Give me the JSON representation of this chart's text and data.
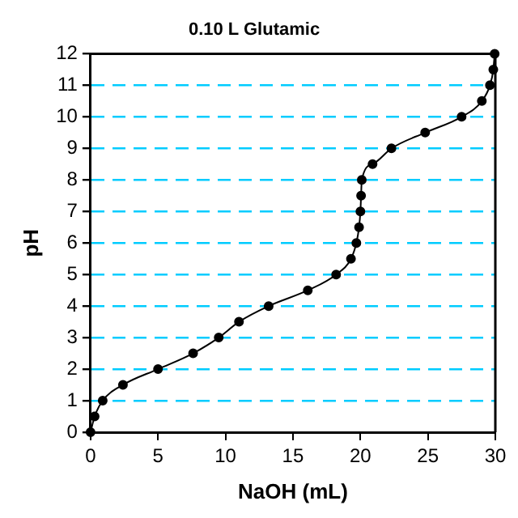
{
  "chart_data": {
    "type": "line",
    "title": "0.10 L Glutamic",
    "xlabel": "NaOH (mL)",
    "ylabel": "pH",
    "xlim": [
      0,
      30
    ],
    "xticks": [
      0,
      5,
      10,
      15,
      20,
      25,
      30
    ],
    "ylim": [
      0,
      12
    ],
    "yticks": [
      0,
      1,
      2,
      3,
      4,
      5,
      6,
      7,
      8,
      9,
      10,
      11,
      12
    ],
    "grid": "y",
    "legend": false,
    "marker": "circle",
    "line_style": "solid",
    "series": [
      {
        "color": "#000000",
        "x": [
          0,
          0.3,
          0.9,
          2.4,
          5,
          7.6,
          9.5,
          11,
          13.2,
          16.1,
          18.2,
          19.3,
          19.7,
          19.9,
          20,
          20.05,
          20.1,
          20.9,
          22.3,
          24.8,
          27.5,
          29,
          29.6,
          29.85,
          29.95
        ],
        "values": [
          0,
          0.5,
          1,
          1.5,
          2,
          2.5,
          3,
          3.5,
          4,
          4.5,
          5,
          5.5,
          6,
          6.5,
          7,
          7.5,
          8,
          8.5,
          9,
          9.5,
          10,
          10.5,
          11,
          11.5,
          12
        ]
      }
    ]
  }
}
